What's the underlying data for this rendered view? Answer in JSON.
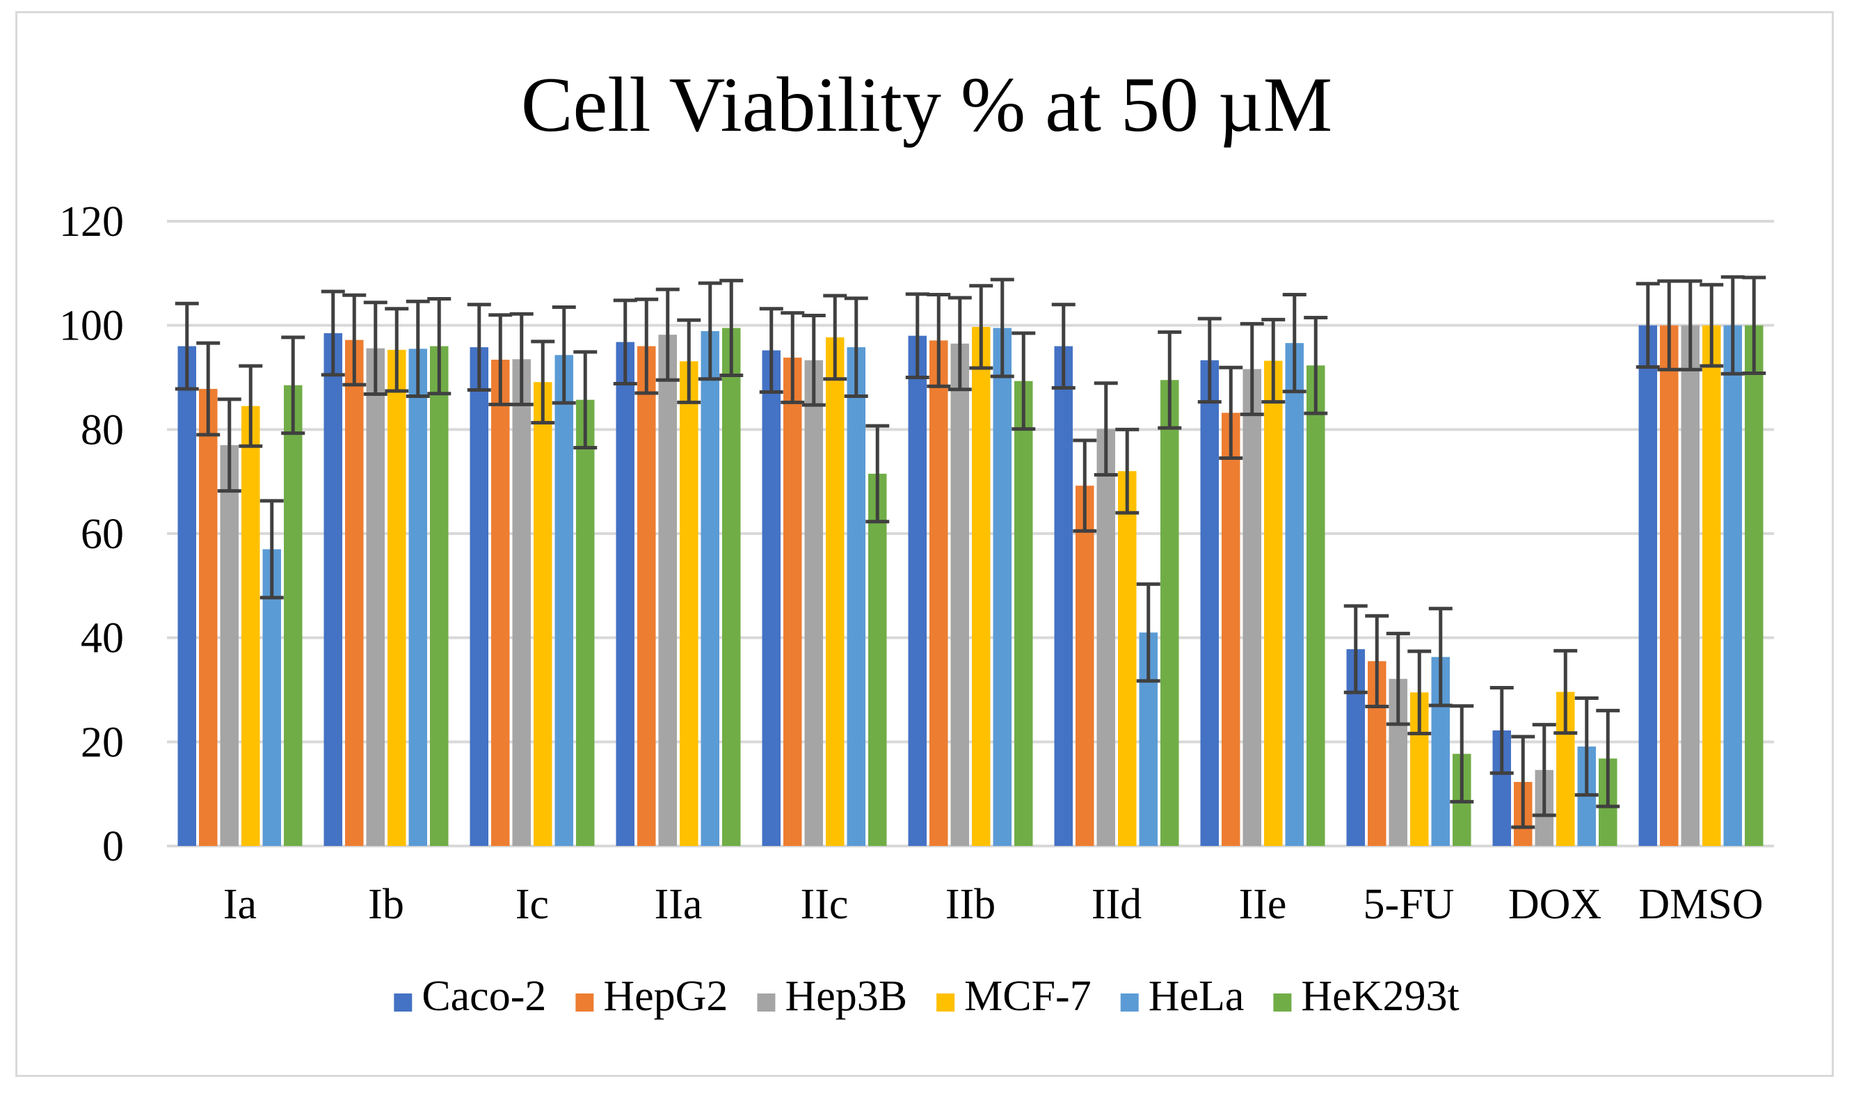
{
  "chart_data": {
    "type": "bar",
    "title": "Cell Viability % at 50 µM",
    "xlabel": "",
    "ylabel": "",
    "ylim": [
      0,
      120
    ],
    "yticks": [
      0,
      20,
      40,
      60,
      80,
      100,
      120
    ],
    "grid": true,
    "legend_position": "bottom",
    "categories": [
      "Ia",
      "Ib",
      "Ic",
      "IIa",
      "IIc",
      "IIb",
      "IId",
      "IIe",
      "5-FU",
      "DOX",
      "DMSO"
    ],
    "series": [
      {
        "name": "Caco-2",
        "color": "#4472C4",
        "values": [
          96,
          98.5,
          95.8,
          96.8,
          95.2,
          98,
          96,
          93.3,
          37.8,
          22.2,
          100
        ],
        "errors": [
          8.2,
          8,
          8.2,
          8,
          8,
          8,
          8,
          8,
          8.3,
          8.2,
          8
        ]
      },
      {
        "name": "HepG2",
        "color": "#ED7D31",
        "values": [
          87.8,
          97.2,
          93.4,
          96,
          93.8,
          97.1,
          69.2,
          83.2,
          35.5,
          12.3,
          100
        ],
        "errors": [
          8.8,
          8.6,
          8.6,
          9,
          8.6,
          8.8,
          8.7,
          8.7,
          8.7,
          8.7,
          8.5
        ]
      },
      {
        "name": "Hep3B",
        "color": "#A5A5A5",
        "values": [
          77,
          95.6,
          93.5,
          98.2,
          93.3,
          96.5,
          80.1,
          91.6,
          32.1,
          14.6,
          100
        ],
        "errors": [
          8.8,
          8.8,
          8.7,
          8.7,
          8.6,
          8.8,
          8.8,
          8.7,
          8.7,
          8.7,
          8.5
        ]
      },
      {
        "name": "MCF-7",
        "color": "#FFC000",
        "values": [
          84.5,
          95.3,
          89.1,
          93.1,
          97.7,
          99.7,
          72,
          93.2,
          29.5,
          29.6,
          100
        ],
        "errors": [
          7.7,
          7.9,
          7.8,
          7.9,
          8,
          7.9,
          8,
          7.9,
          7.9,
          7.9,
          7.8
        ]
      },
      {
        "name": "HeLa",
        "color": "#5B9BD5",
        "values": [
          57,
          95.5,
          94.3,
          98.9,
          95.8,
          99.5,
          41,
          96.6,
          36.3,
          19.1,
          100
        ],
        "errors": [
          9.3,
          9.1,
          9.2,
          9.2,
          9.4,
          9.3,
          9.3,
          9.3,
          9.3,
          9.3,
          9.3
        ]
      },
      {
        "name": "HeK293t",
        "color": "#70AD47",
        "values": [
          88.5,
          96,
          85.7,
          99.5,
          71.5,
          89.3,
          89.5,
          92.3,
          17.7,
          16.8,
          100
        ],
        "errors": [
          9.2,
          9.1,
          9.2,
          9.1,
          9.2,
          9.2,
          9.2,
          9.2,
          9.2,
          9.2,
          9.2
        ]
      }
    ]
  }
}
